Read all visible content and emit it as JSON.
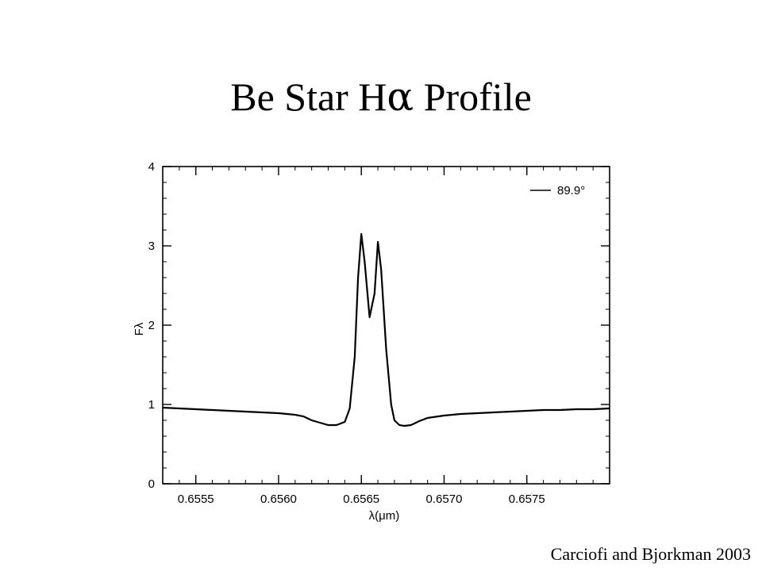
{
  "slide": {
    "title_main": "Be Star H",
    "title_greek": "α",
    "title_tail": " Profile",
    "credit": "Carciofi and Bjorkman 2003"
  },
  "chart_data": {
    "type": "line",
    "xlabel": "λ(μm)",
    "ylabel": "Fλ",
    "xlim": [
      0.6553,
      0.658
    ],
    "ylim": [
      0,
      4
    ],
    "x_ticks": [
      0.6555,
      0.656,
      0.6565,
      0.657,
      0.6575
    ],
    "x_tick_labels": [
      "0.6555",
      "0.6560",
      "0.6565",
      "0.6570",
      "0.6575"
    ],
    "y_ticks": [
      0,
      1,
      2,
      3,
      4
    ],
    "y_tick_labels": [
      "0",
      "1",
      "2",
      "3",
      "4"
    ],
    "grid": false,
    "legend_position": "top-right",
    "series": [
      {
        "name": "89.9°",
        "color": "#000000",
        "x": [
          0.6553,
          0.6554,
          0.6555,
          0.6556,
          0.6557,
          0.6558,
          0.6559,
          0.656,
          0.6561,
          0.65615,
          0.6562,
          0.65625,
          0.6563,
          0.65635,
          0.6564,
          0.65643,
          0.65646,
          0.65648,
          0.6565,
          0.65652,
          0.65655,
          0.65658,
          0.6566,
          0.65662,
          0.65665,
          0.65668,
          0.6567,
          0.65673,
          0.65676,
          0.6568,
          0.65685,
          0.6569,
          0.657,
          0.6571,
          0.6572,
          0.6573,
          0.6574,
          0.6575,
          0.6576,
          0.6577,
          0.6578,
          0.6579,
          0.658
        ],
        "y": [
          0.96,
          0.95,
          0.94,
          0.93,
          0.92,
          0.91,
          0.9,
          0.89,
          0.87,
          0.85,
          0.8,
          0.77,
          0.74,
          0.74,
          0.78,
          0.95,
          1.6,
          2.6,
          3.15,
          2.8,
          2.1,
          2.4,
          3.05,
          2.7,
          1.7,
          1.0,
          0.8,
          0.74,
          0.73,
          0.74,
          0.79,
          0.83,
          0.86,
          0.88,
          0.89,
          0.9,
          0.91,
          0.92,
          0.93,
          0.93,
          0.94,
          0.94,
          0.95
        ]
      }
    ]
  }
}
